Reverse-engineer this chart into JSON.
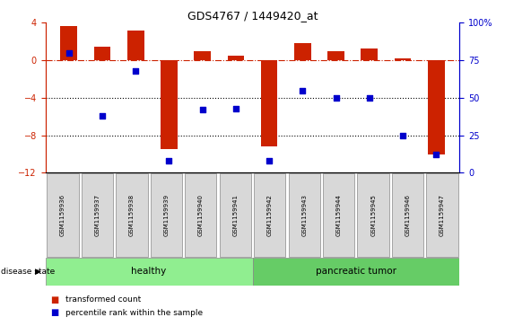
{
  "title": "GDS4767 / 1449420_at",
  "samples": [
    "GSM1159936",
    "GSM1159937",
    "GSM1159938",
    "GSM1159939",
    "GSM1159940",
    "GSM1159941",
    "GSM1159942",
    "GSM1159943",
    "GSM1159944",
    "GSM1159945",
    "GSM1159946",
    "GSM1159947"
  ],
  "transformed_count": [
    3.7,
    1.5,
    3.2,
    -9.5,
    1.0,
    0.5,
    -9.2,
    1.8,
    1.0,
    1.3,
    0.2,
    -10.0
  ],
  "percentile_rank": [
    80,
    38,
    68,
    8,
    42,
    43,
    8,
    55,
    50,
    50,
    25,
    12
  ],
  "ylim_left": [
    -12,
    4
  ],
  "ylim_right": [
    0,
    100
  ],
  "yticks_left": [
    -12,
    -8,
    -4,
    0,
    4
  ],
  "yticks_right": [
    0,
    25,
    50,
    75,
    100
  ],
  "bar_color": "#CC2200",
  "dot_color": "#0000CC",
  "hline_color": "#CC2200",
  "dotted_lines": [
    -4,
    -8
  ],
  "healthy_count": 6,
  "tumor_count": 6,
  "healthy_label": "healthy",
  "tumor_label": "pancreatic tumor",
  "healthy_color": "#90EE90",
  "tumor_color": "#66CC66",
  "disease_label": "disease state",
  "legend_red_label": "transformed count",
  "legend_blue_label": "percentile rank within the sample",
  "bar_width": 0.5,
  "background_color": "#ffffff"
}
